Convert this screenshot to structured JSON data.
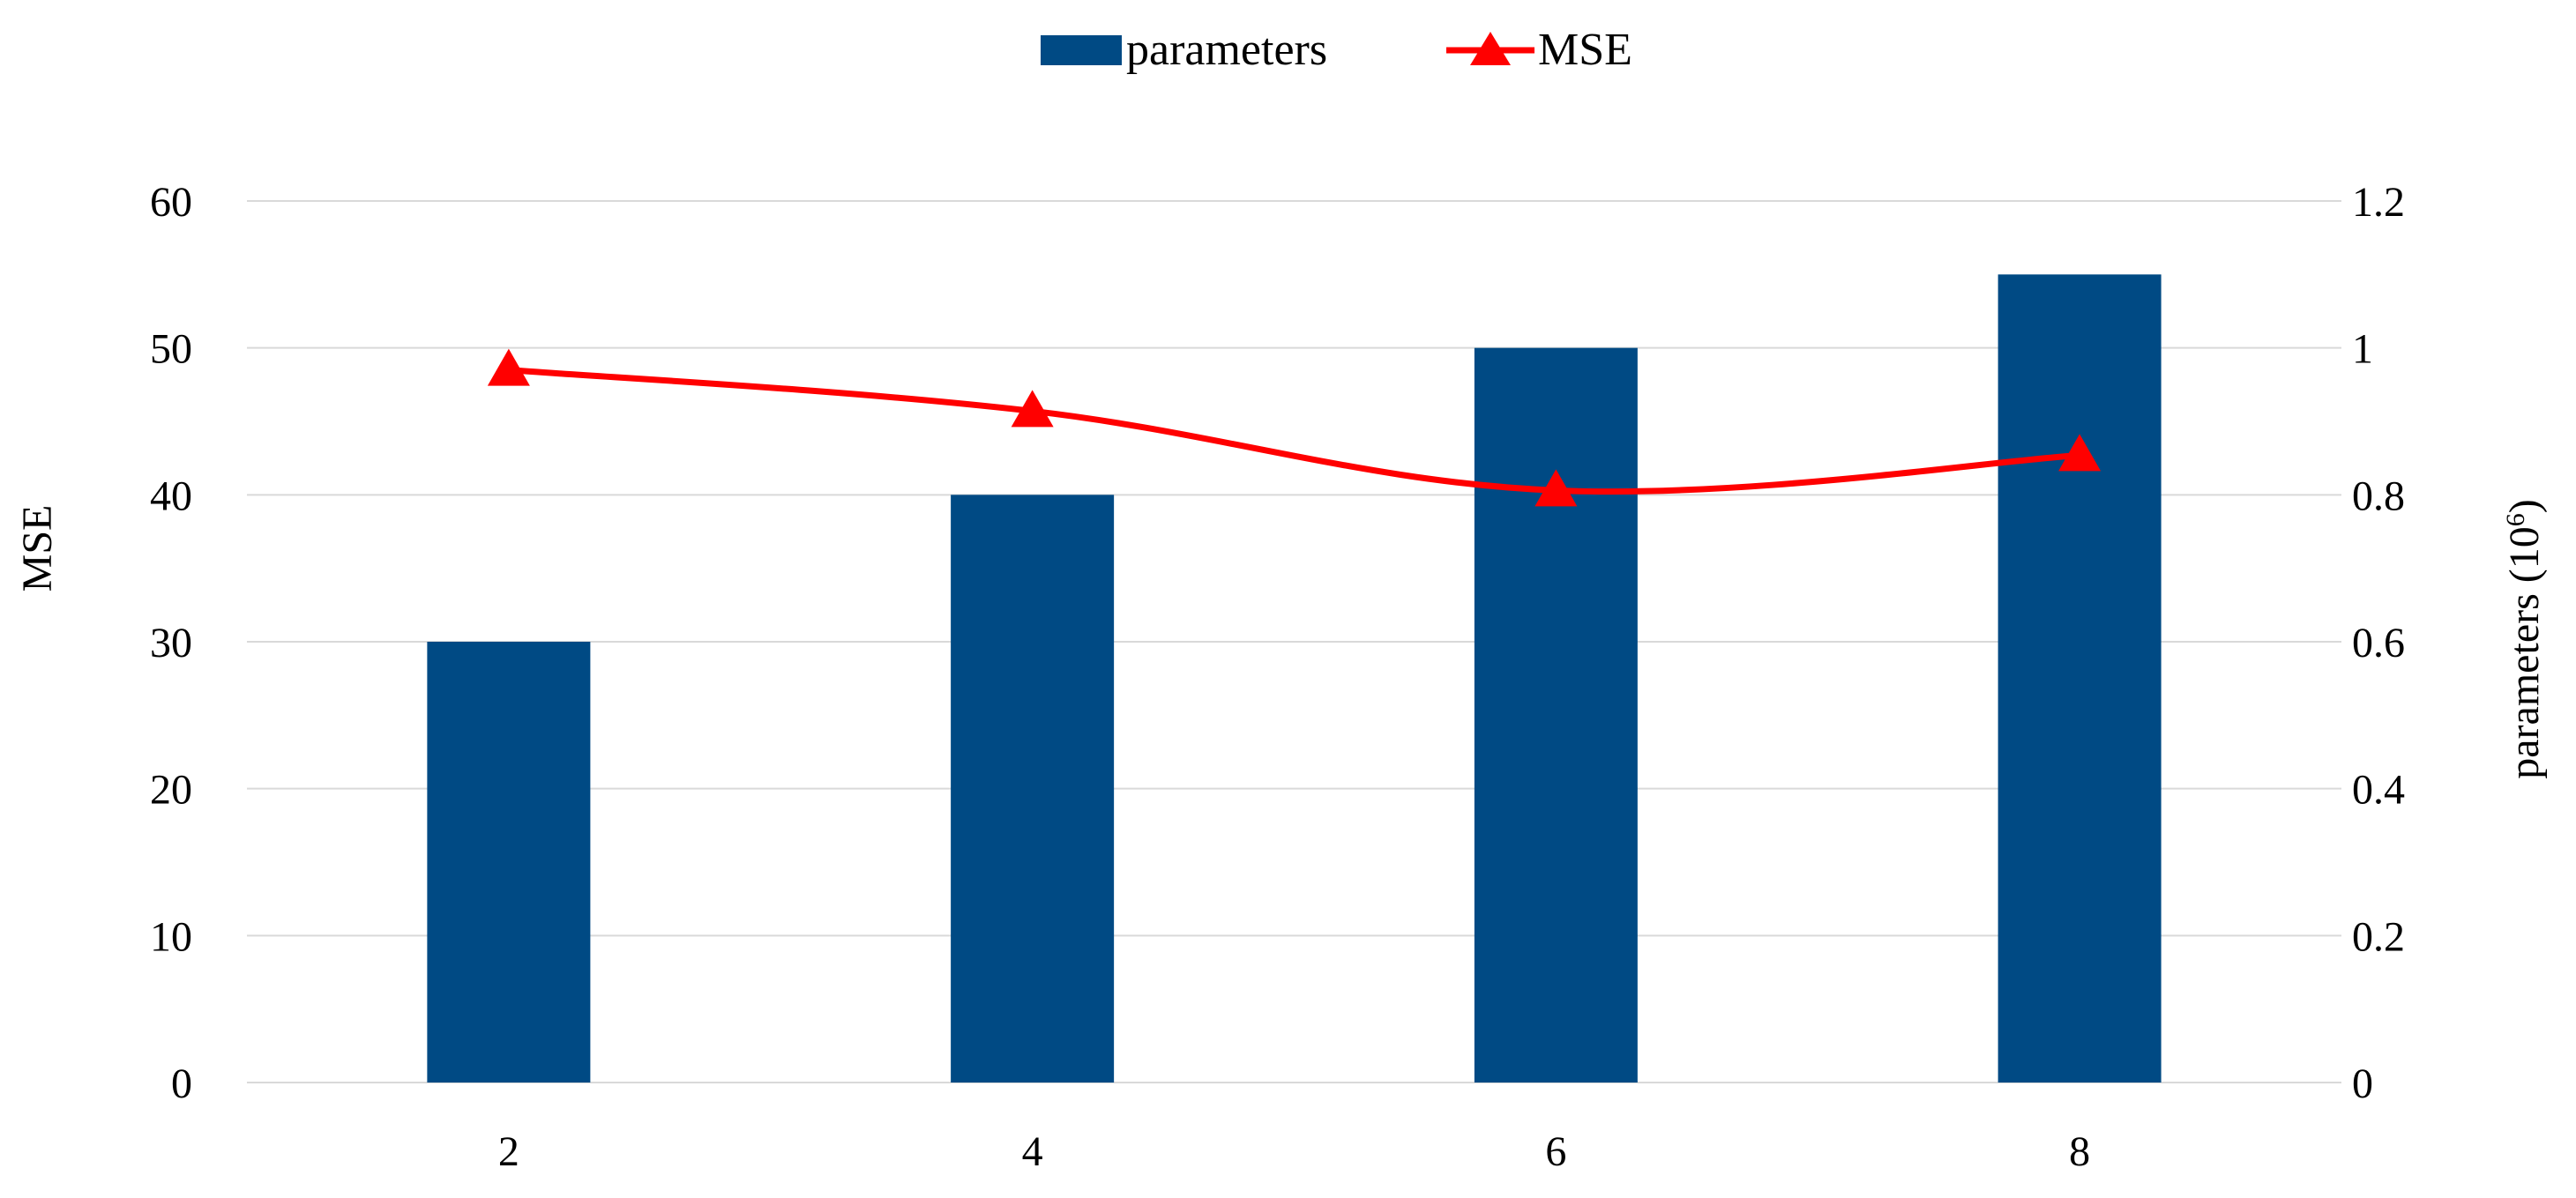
{
  "chart_data": {
    "type": "bar",
    "categories": [
      "2",
      "4",
      "6",
      "8"
    ],
    "series": [
      {
        "name": "parameters",
        "type": "bar",
        "axis": "right",
        "values": [
          0.6,
          0.8,
          1.0,
          1.1
        ],
        "color": "#004A84"
      },
      {
        "name": "MSE",
        "type": "line",
        "marker": "triangle",
        "axis": "left",
        "values": [
          48.5,
          45.7,
          40.3,
          42.7
        ],
        "color": "#FF0000"
      }
    ],
    "left_axis": {
      "label": "MSE",
      "range": [
        0,
        60
      ],
      "ticks": [
        "0",
        "10",
        "20",
        "30",
        "40",
        "50",
        "60"
      ]
    },
    "right_axis": {
      "label_base": "parameters (10",
      "label_superscript": "6",
      "label_close": ")",
      "range": [
        0,
        1.2
      ],
      "ticks": [
        "0",
        "0.2",
        "0.4",
        "0.6",
        "0.8",
        "1",
        "1.2"
      ]
    },
    "grid": "horizontal",
    "legend_position": "top-center"
  }
}
